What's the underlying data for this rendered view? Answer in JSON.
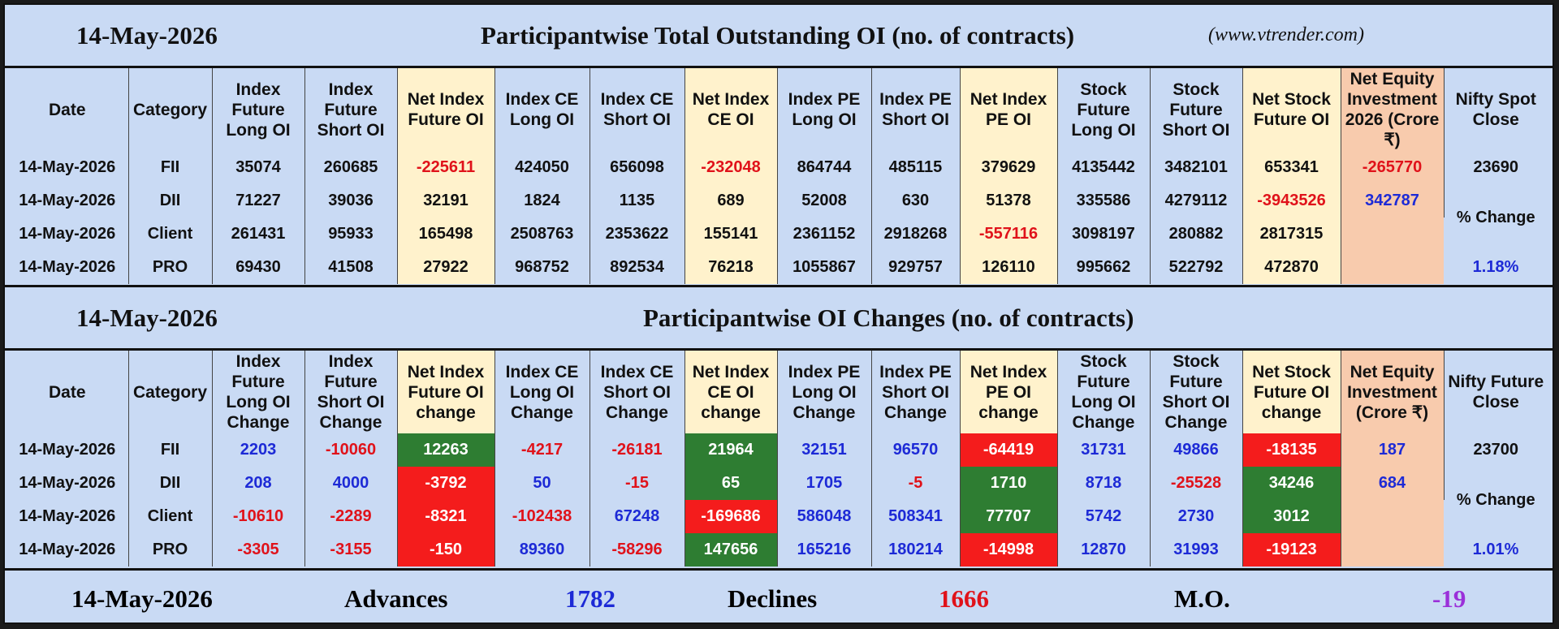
{
  "oi": {
    "date": "14-May-2026",
    "title": "Participantwise Total Outstanding OI (no. of contracts)",
    "url": "(www.vtrender.com)",
    "headers": [
      "Date",
      "Category",
      "Index Future Long OI",
      "Index Future Short OI",
      "Net Index Future OI",
      "Index CE Long OI",
      "Index CE Short OI",
      "Net Index CE OI",
      "Index PE Long OI",
      "Index PE Short OI",
      "Net Index PE OI",
      "Stock Future Long OI",
      "Stock Future Short OI",
      "Net Stock Future OI",
      "Net Equity Investment 2026 (Crore ₹)",
      "Nifty Spot Close"
    ],
    "rows": [
      [
        "14-May-2026",
        "FII",
        "35074",
        "260685",
        "-225611",
        "424050",
        "656098",
        "-232048",
        "864744",
        "485115",
        "379629",
        "4135442",
        "3482101",
        "653341",
        "-265770"
      ],
      [
        "14-May-2026",
        "DII",
        "71227",
        "39036",
        "32191",
        "1824",
        "1135",
        "689",
        "52008",
        "630",
        "51378",
        "335586",
        "4279112",
        "-3943526",
        "342787"
      ],
      [
        "14-May-2026",
        "Client",
        "261431",
        "95933",
        "165498",
        "2508763",
        "2353622",
        "155141",
        "2361152",
        "2918268",
        "-557116",
        "3098197",
        "280882",
        "2817315",
        ""
      ],
      [
        "14-May-2026",
        "PRO",
        "69430",
        "41508",
        "27922",
        "968752",
        "892534",
        "76218",
        "1055867",
        "929757",
        "126110",
        "995662",
        "522792",
        "472870",
        ""
      ]
    ],
    "nifty_close": "23690",
    "pct_label": "% Change",
    "pct_value": "1.18%"
  },
  "chg": {
    "date": "14-May-2026",
    "title": "Participantwise OI Changes (no. of contracts)",
    "headers": [
      "Date",
      "Category",
      "Index Future Long OI Change",
      "Index Future Short OI Change",
      "Net Index Future OI change",
      "Index CE Long OI Change",
      "Index CE Short OI Change",
      "Net Index CE OI change",
      "Index PE Long OI Change",
      "Index PE Short OI Change",
      "Net Index PE OI change",
      "Stock Future Long OI Change",
      "Stock Future Short OI Change",
      "Net Stock Future OI change",
      "Net Equity Investment (Crore ₹)",
      "Nifty Future Close"
    ],
    "rows": [
      [
        "14-May-2026",
        "FII",
        "2203",
        "-10060",
        "12263",
        "-4217",
        "-26181",
        "21964",
        "32151",
        "96570",
        "-64419",
        "31731",
        "49866",
        "-18135",
        "187"
      ],
      [
        "14-May-2026",
        "DII",
        "208",
        "4000",
        "-3792",
        "50",
        "-15",
        "65",
        "1705",
        "-5",
        "1710",
        "8718",
        "-25528",
        "34246",
        "684"
      ],
      [
        "14-May-2026",
        "Client",
        "-10610",
        "-2289",
        "-8321",
        "-102438",
        "67248",
        "-169686",
        "586048",
        "508341",
        "77707",
        "5742",
        "2730",
        "3012",
        ""
      ],
      [
        "14-May-2026",
        "PRO",
        "-3305",
        "-3155",
        "-150",
        "89360",
        "-58296",
        "147656",
        "165216",
        "180214",
        "-14998",
        "12870",
        "31993",
        "-19123",
        ""
      ]
    ],
    "nifty_close": "23700",
    "pct_label": "% Change",
    "pct_value": "1.01%"
  },
  "footer": {
    "date": "14-May-2026",
    "advances_label": "Advances",
    "advances": "1782",
    "declines_label": "Declines",
    "declines": "1666",
    "mo_label": "M.O.",
    "mo": "-19"
  },
  "colors": {
    "blue": "#1d2ad6",
    "red": "#e0121a",
    "green_cell": "#2e7d32",
    "red_cell": "#f41c1c",
    "yellow": "#fff2cc",
    "peach": "#f8cbad",
    "bg": "#c9daf4"
  }
}
